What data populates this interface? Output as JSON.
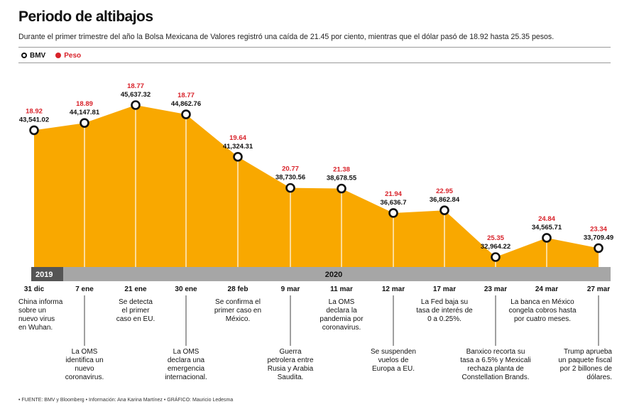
{
  "header": {
    "title": "Periodo de altibajos",
    "subtitle": "Durante el primer trimestre del año la Bolsa Mexicana de Valores registró una caída de 21.45 por ciento, mientras que el dólar pasó de 18.92 hasta 25.35 pesos."
  },
  "legend": {
    "bmv": "BMV",
    "peso": "Peso"
  },
  "colors": {
    "area": "#f9a800",
    "peso": "#d8222a",
    "year_bar_2019": "#555555",
    "year_bar_2020": "#a6a6a6",
    "marker_stroke": "#111111"
  },
  "years": {
    "y2019": "2019",
    "y2020": "2020"
  },
  "chart_data": {
    "type": "area",
    "title": "Periodo de altibajos",
    "categories": [
      "31 dic",
      "7 ene",
      "21 ene",
      "30 ene",
      "28 feb",
      "9 mar",
      "11 mar",
      "12 mar",
      "17 mar",
      "23 mar",
      "24 mar",
      "27 mar"
    ],
    "ylim": [
      31500,
      47000
    ],
    "grid": false,
    "legend_position": "top-left",
    "series": [
      {
        "name": "BMV",
        "values": [
          43541.02,
          44147.81,
          45637.32,
          44862.76,
          41324.31,
          38730.56,
          38678.55,
          36636.7,
          36862.84,
          32964.22,
          34565.71,
          33709.49
        ],
        "labels": [
          "43,541.02",
          "44,147.81",
          "45,637.32",
          "44,862.76",
          "41,324.31",
          "38,730.56",
          "38,678.55",
          "36,636.7",
          "36,862.84",
          "32,964.22",
          "34,565.71",
          "33,709.49"
        ]
      },
      {
        "name": "Peso",
        "values": [
          18.92,
          18.89,
          18.77,
          18.77,
          19.64,
          20.77,
          21.38,
          21.94,
          22.95,
          25.35,
          24.84,
          23.34
        ],
        "labels": [
          "18.92",
          "18.89",
          "18.77",
          "18.77",
          "19.64",
          "20.77",
          "21.38",
          "21.94",
          "22.95",
          "25.35",
          "24.84",
          "23.34"
        ]
      }
    ],
    "annotations": [
      {
        "date": "31 dic",
        "text": "China informa sobre un nuevo virus en Wuhan."
      },
      {
        "date": "7 ene",
        "text": "La OMS identifica un nuevo coronavirus."
      },
      {
        "date": "21 ene",
        "text": "Se detecta el primer caso en EU."
      },
      {
        "date": "30 ene",
        "text": "La OMS declara una emergencia internacional."
      },
      {
        "date": "28 feb",
        "text": "Se confirma el primer caso en México."
      },
      {
        "date": "9 mar",
        "text": "Guerra petrolera entre Rusia y Arabia Saudita."
      },
      {
        "date": "11 mar",
        "text": "La OMS declara la pandemia por coronavirus."
      },
      {
        "date": "12 mar",
        "text": "Se suspenden vuelos de Europa a EU."
      },
      {
        "date": "17 mar",
        "text": "La Fed baja su tasa de interés de 0 a 0.25%."
      },
      {
        "date": "23 mar",
        "text": "Banxico recorta su tasa a 6.5% y Mexicali rechaza planta de Constellation Brands."
      },
      {
        "date": "24 mar",
        "text": "La banca en México congela cobros hasta por cuatro meses."
      },
      {
        "date": "27 mar",
        "text": "Trump aprueba un paquete fiscal por 2 billones de dólares."
      }
    ]
  },
  "footer": {
    "text": "• FUENTE: BMV y Bloomberg • Información: Ana Karina Martínez • GRÁFICO: Mauricio Ledesma"
  }
}
